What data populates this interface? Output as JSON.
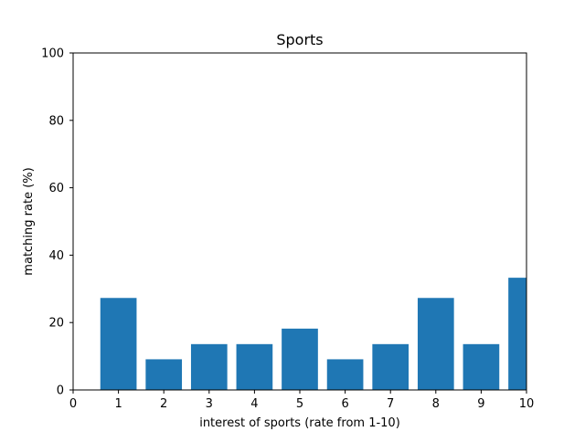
{
  "chart_data": {
    "type": "bar",
    "title": "Sports",
    "xlabel": "interest of sports (rate from 1-10)",
    "ylabel": "matching rate (%)",
    "categories": [
      1,
      2,
      3,
      4,
      5,
      6,
      7,
      8,
      9,
      10
    ],
    "values": [
      27.3,
      9.1,
      13.6,
      13.6,
      18.2,
      9.1,
      13.6,
      27.3,
      13.6,
      33.3
    ],
    "xlim": [
      0,
      10
    ],
    "ylim": [
      0,
      100
    ],
    "xticks": [
      0,
      1,
      2,
      3,
      4,
      5,
      6,
      7,
      8,
      9,
      10
    ],
    "yticks": [
      0,
      20,
      40,
      60,
      80,
      100
    ],
    "bar_color": "#1f77b4",
    "grid": false,
    "legend": "none"
  }
}
